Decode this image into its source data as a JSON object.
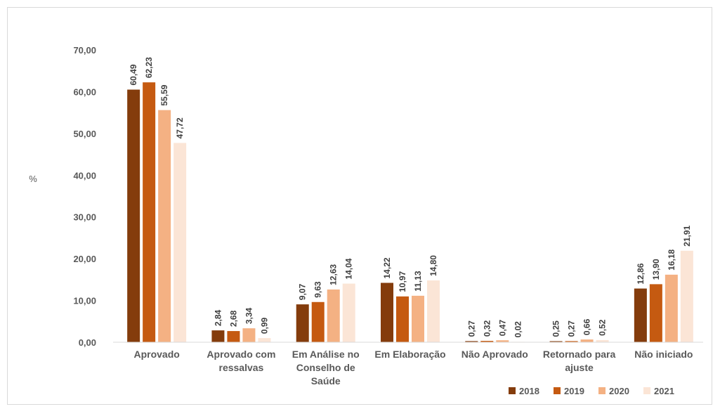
{
  "chart_data": {
    "type": "bar",
    "title": "",
    "xlabel": "",
    "ylabel": "%",
    "ylim": [
      0,
      70
    ],
    "yticks": [
      0,
      10,
      20,
      30,
      40,
      50,
      60,
      70
    ],
    "ytick_labels": [
      "0,00",
      "10,00",
      "20,00",
      "30,00",
      "40,00",
      "50,00",
      "60,00",
      "70,00"
    ],
    "grid": false,
    "legend_position": "bottom-right",
    "categories": [
      [
        "Aprovado"
      ],
      [
        "Aprovado com",
        "ressalvas"
      ],
      [
        "Em Análise no",
        "Conselho de",
        "Saúde"
      ],
      [
        "Em Elaboração"
      ],
      [
        "Não Aprovado"
      ],
      [
        "Retornado para",
        "ajuste"
      ],
      [
        "Não iniciado"
      ]
    ],
    "series": [
      {
        "name": "2018",
        "color": "#843c0c",
        "values": [
          60.49,
          2.84,
          9.07,
          14.22,
          0.27,
          0.25,
          12.86
        ],
        "labels": [
          "60,49",
          "2,84",
          "9,07",
          "14,22",
          "0,27",
          "0,25",
          "12,86"
        ]
      },
      {
        "name": "2019",
        "color": "#c55a11",
        "values": [
          62.23,
          2.68,
          9.63,
          10.97,
          0.32,
          0.27,
          13.9
        ],
        "labels": [
          "62,23",
          "2,68",
          "9,63",
          "10,97",
          "0,32",
          "0,27",
          "13,90"
        ]
      },
      {
        "name": "2020",
        "color": "#f4b183",
        "values": [
          55.59,
          3.34,
          12.63,
          11.13,
          0.47,
          0.66,
          16.18
        ],
        "labels": [
          "55,59",
          "3,34",
          "12,63",
          "11,13",
          "0,47",
          "0,66",
          "16,18"
        ]
      },
      {
        "name": "2021",
        "color": "#fbe5d6",
        "values": [
          47.72,
          0.99,
          14.04,
          14.8,
          0.02,
          0.52,
          21.91
        ],
        "labels": [
          "47,72",
          "0,99",
          "14,04",
          "14,80",
          "0,02",
          "0,52",
          "21,91"
        ]
      }
    ]
  }
}
